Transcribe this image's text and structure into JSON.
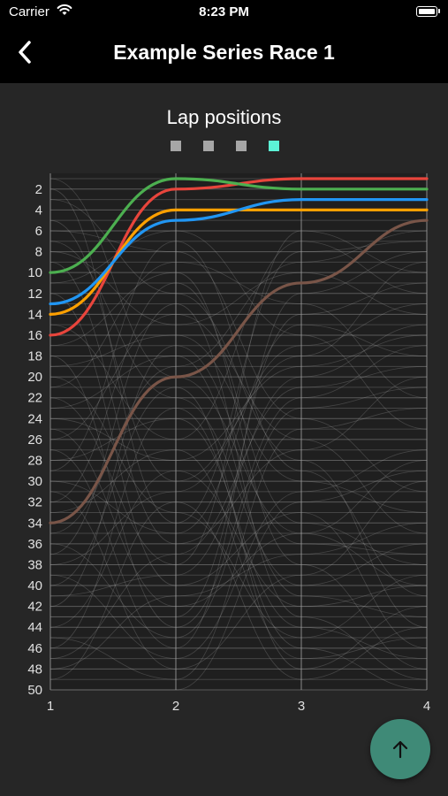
{
  "status_bar": {
    "carrier": "Carrier",
    "time": "8:23 PM"
  },
  "nav": {
    "title": "Example Series Race 1",
    "back_icon": "chevron-left-icon"
  },
  "fab": {
    "icon": "arrow-up-icon"
  },
  "colors": {
    "accent_fab": "#3f8a77",
    "background": "#262626"
  },
  "chart_data": {
    "type": "line",
    "title": "Lap positions",
    "x": [
      1,
      2,
      3,
      4
    ],
    "x_ticks": [
      "1",
      "2",
      "3",
      "4"
    ],
    "y_ticks": [
      "2",
      "4",
      "6",
      "8",
      "10",
      "12",
      "14",
      "16",
      "18",
      "20",
      "22",
      "24",
      "26",
      "28",
      "30",
      "32",
      "34",
      "36",
      "38",
      "40",
      "42",
      "44",
      "46",
      "48",
      "50"
    ],
    "ylim": [
      1,
      50
    ],
    "y_inverted": true,
    "grid": true,
    "legend": {
      "placement": "top-center",
      "colors": [
        "#a6a6a6",
        "#a6a6a6",
        "#a6a6a6",
        "#5cf2d6"
      ]
    },
    "series": [
      {
        "color": "#e8453c",
        "values": [
          16,
          2,
          1,
          1
        ]
      },
      {
        "color": "#4caf50",
        "values": [
          10,
          1,
          2,
          2
        ]
      },
      {
        "color": "#ffa000",
        "values": [
          14,
          4,
          4,
          4
        ]
      },
      {
        "color": "#2196f3",
        "values": [
          13,
          5,
          3,
          3
        ]
      },
      {
        "color": "#795548",
        "values": [
          34,
          20,
          11,
          5
        ]
      }
    ],
    "background_series": [
      [
        1,
        20,
        35,
        40
      ],
      [
        3,
        12,
        28,
        44
      ],
      [
        5,
        30,
        18,
        9
      ],
      [
        6,
        8,
        24,
        31
      ],
      [
        7,
        22,
        40,
        36
      ],
      [
        8,
        15,
        10,
        14
      ],
      [
        9,
        36,
        27,
        20
      ],
      [
        11,
        6,
        16,
        25
      ],
      [
        12,
        40,
        33,
        46
      ],
      [
        15,
        26,
        7,
        12
      ],
      [
        17,
        10,
        38,
        48
      ],
      [
        18,
        44,
        22,
        17
      ],
      [
        19,
        16,
        30,
        33
      ],
      [
        20,
        33,
        45,
        39
      ],
      [
        21,
        9,
        13,
        22
      ],
      [
        22,
        38,
        6,
        10
      ],
      [
        23,
        18,
        41,
        43
      ],
      [
        24,
        28,
        19,
        16
      ],
      [
        25,
        42,
        35,
        28
      ],
      [
        26,
        14,
        26,
        35
      ],
      [
        27,
        46,
        12,
        8
      ],
      [
        28,
        24,
        44,
        47
      ],
      [
        29,
        7,
        29,
        41
      ],
      [
        30,
        35,
        15,
        18
      ],
      [
        31,
        48,
        39,
        30
      ],
      [
        32,
        11,
        34,
        38
      ],
      [
        33,
        27,
        47,
        45
      ],
      [
        35,
        19,
        9,
        6
      ],
      [
        36,
        45,
        23,
        21
      ],
      [
        37,
        13,
        43,
        49
      ],
      [
        38,
        31,
        17,
        13
      ],
      [
        39,
        47,
        31,
        27
      ],
      [
        40,
        21,
        48,
        42
      ],
      [
        41,
        39,
        20,
        15
      ],
      [
        42,
        17,
        36,
        37
      ],
      [
        43,
        43,
        14,
        11
      ],
      [
        44,
        29,
        42,
        40
      ],
      [
        45,
        49,
        25,
        23
      ],
      [
        46,
        23,
        46,
        50
      ],
      [
        47,
        37,
        21,
        19
      ],
      [
        48,
        41,
        37,
        34
      ],
      [
        49,
        32,
        49,
        44
      ],
      [
        50,
        50,
        32,
        29
      ],
      [
        2,
        34,
        8,
        7
      ]
    ]
  }
}
